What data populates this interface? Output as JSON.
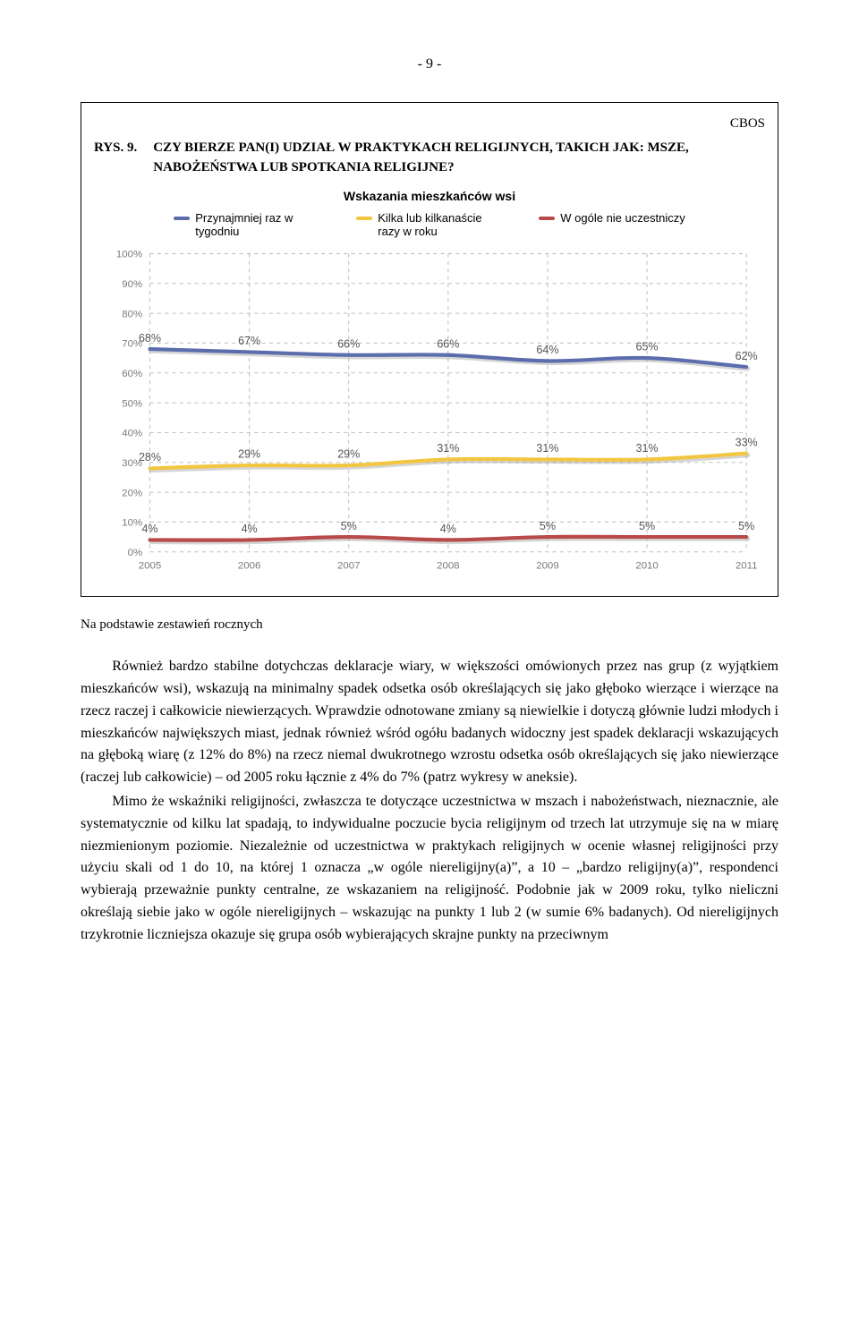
{
  "page_num": "- 9 -",
  "tag": "CBOS",
  "figure": {
    "label": "RYS. 9.",
    "title": "CZY BIERZE PAN(I) UDZIAŁ W PRAKTYKACH RELIGIJNYCH, TAKICH JAK: MSZE, NABOŻEŃSTWA LUB SPOTKANIA RELIGIJNE?",
    "subtitle": "Wskazania mieszkańców wsi",
    "legend": [
      {
        "label": "Przynajmniej raz w tygodniu",
        "color": "#5b6dad"
      },
      {
        "label": "Kilka lub kilkanaście razy w roku",
        "color": "#f2c641"
      },
      {
        "label": "W ogóle nie uczestniczy",
        "color": "#b84a4a"
      }
    ],
    "chart": {
      "type": "line",
      "years": [
        "2005",
        "2006",
        "2007",
        "2008",
        "2009",
        "2010",
        "2011"
      ],
      "ylabels": [
        "0%",
        "10%",
        "20%",
        "30%",
        "40%",
        "50%",
        "60%",
        "70%",
        "80%",
        "90%",
        "100%"
      ],
      "ylim": [
        0,
        100
      ],
      "grid_color": "#bfbfbf",
      "series": [
        {
          "name": "weekly",
          "color": "#5b6dad",
          "values": [
            68,
            67,
            66,
            66,
            64,
            65,
            62
          ]
        },
        {
          "name": "sometimes",
          "color": "#f2c641",
          "values": [
            28,
            29,
            29,
            31,
            31,
            31,
            33
          ]
        },
        {
          "name": "never",
          "color": "#b84a4a",
          "values": [
            4,
            4,
            5,
            4,
            5,
            5,
            5
          ]
        }
      ],
      "ax_font_color": "#7a7a7a",
      "label_font": "Arial"
    },
    "note": "Na podstawie zestawień rocznych"
  },
  "paras": [
    "Również bardzo stabilne dotychczas deklaracje wiary, w większości omówionych przez nas grup (z wyjątkiem mieszkańców wsi), wskazują na minimalny spadek odsetka osób określających się jako głęboko wierzące i wierzące na rzecz raczej i całkowicie niewierzących. Wprawdzie odnotowane zmiany są niewielkie i dotyczą głównie ludzi młodych i mieszkańców największych miast, jednak również wśród ogółu badanych widoczny jest spadek deklaracji wskazujących na głęboką wiarę (z 12% do 8%) na rzecz niemal dwukrotnego wzrostu odsetka osób określających się jako niewierzące (raczej lub całkowicie) – od 2005 roku łącznie z 4% do 7% (patrz wykresy w aneksie).",
    "Mimo że wskaźniki religijności, zwłaszcza te dotyczące uczestnictwa w mszach i nabożeństwach, nieznacznie, ale systematycznie od kilku lat spadają, to indywidualne poczucie bycia religijnym od trzech lat utrzymuje się na w miarę niezmienionym poziomie. Niezależnie od uczestnictwa w praktykach religijnych w ocenie własnej religijności przy użyciu skali od 1 do 10, na której 1 oznacza „w ogóle niereligijny(a)”, a 10 – „bardzo religijny(a)”, respondenci wybierają przeważnie punkty centralne, ze wskazaniem na religijność. Podobnie jak w 2009 roku, tylko nieliczni określają siebie jako w ogóle niereligijnych – wskazując na punkty 1 lub 2 (w sumie 6% badanych). Od niereligijnych trzykrotnie liczniejsza okazuje się grupa osób wybierających skrajne punkty na przeciwnym"
  ]
}
